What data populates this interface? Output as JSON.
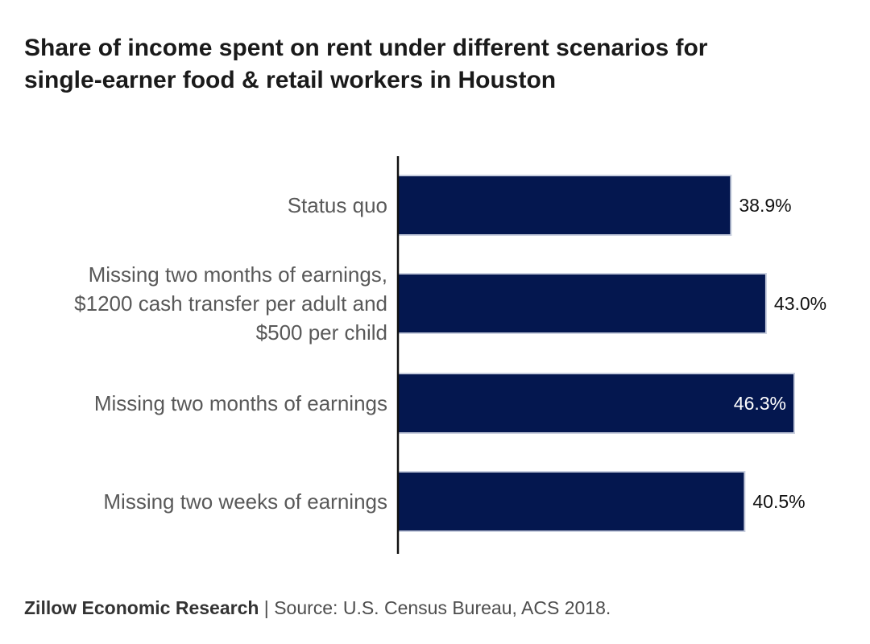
{
  "title_lines": [
    "Share of income spent on rent under different scenarios for",
    "single-earner food & retail workers in Houston"
  ],
  "footer": {
    "organization": "Zillow Economic Research",
    "separator": " | ",
    "source": "Source: U.S. Census Bureau, ACS 2018."
  },
  "colors": {
    "bar": "#04174f",
    "bar_edge": "#c9cfdf",
    "axis": "#111111",
    "category_label": "#595959",
    "value_label_outside": "#111111",
    "value_label_inside": "#ffffff"
  },
  "chart_data": {
    "type": "bar",
    "orientation": "horizontal",
    "categories": [
      [
        "Status quo"
      ],
      [
        "Missing two months of earnings,",
        "$1200 cash transfer per adult and",
        "$500 per child"
      ],
      [
        "Missing two months of earnings"
      ],
      [
        "Missing two weeks of earnings"
      ]
    ],
    "values": [
      38.9,
      43.0,
      46.3,
      40.5
    ],
    "data_labels": [
      "38.9%",
      "43.0%",
      "46.3%",
      "40.5%"
    ],
    "inside_label_index": 2,
    "xlim": [
      0,
      46.3
    ],
    "grid": false,
    "legend": "none",
    "xlabel": "",
    "ylabel": ""
  }
}
